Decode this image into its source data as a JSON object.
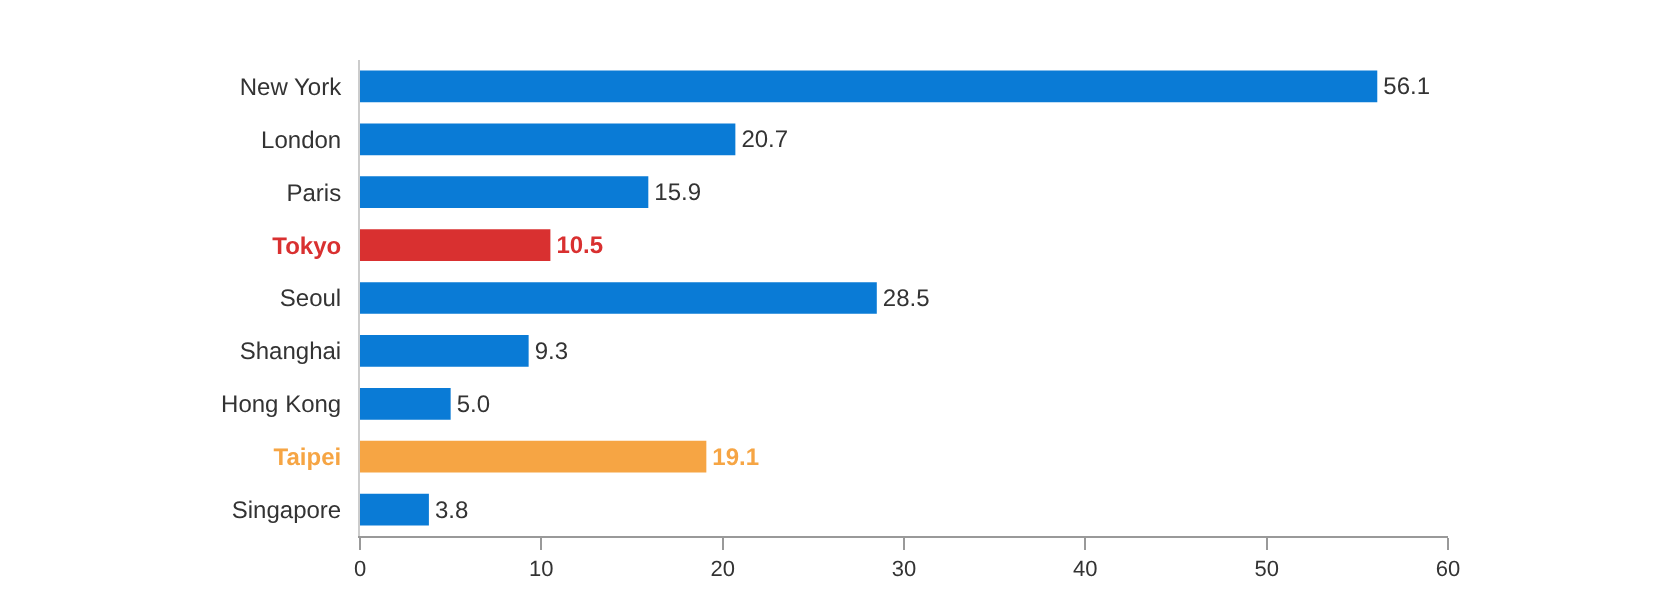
{
  "chart_data": {
    "type": "bar",
    "orientation": "horizontal",
    "categories": [
      "New York",
      "London",
      "Paris",
      "Tokyo",
      "Seoul",
      "Shanghai",
      "Hong Kong",
      "Taipei",
      "Singapore"
    ],
    "values": [
      56.1,
      20.7,
      15.9,
      10.5,
      28.5,
      9.3,
      5.0,
      19.1,
      3.8
    ],
    "value_labels": [
      "56.1",
      "20.7",
      "15.9",
      "10.5",
      "28.5",
      "9.3",
      "5.0",
      "19.1",
      "3.8"
    ],
    "color": "#0a7bd6",
    "colors": [
      "#0a7bd6",
      "#0a7bd6",
      "#0a7bd6",
      "#d93030",
      "#0a7bd6",
      "#0a7bd6",
      "#0a7bd6",
      "#f6a544",
      "#0a7bd6"
    ],
    "xlim": [
      0,
      60
    ],
    "xticks": [
      0,
      10,
      20,
      30,
      40,
      50,
      60
    ],
    "legend": false
  }
}
